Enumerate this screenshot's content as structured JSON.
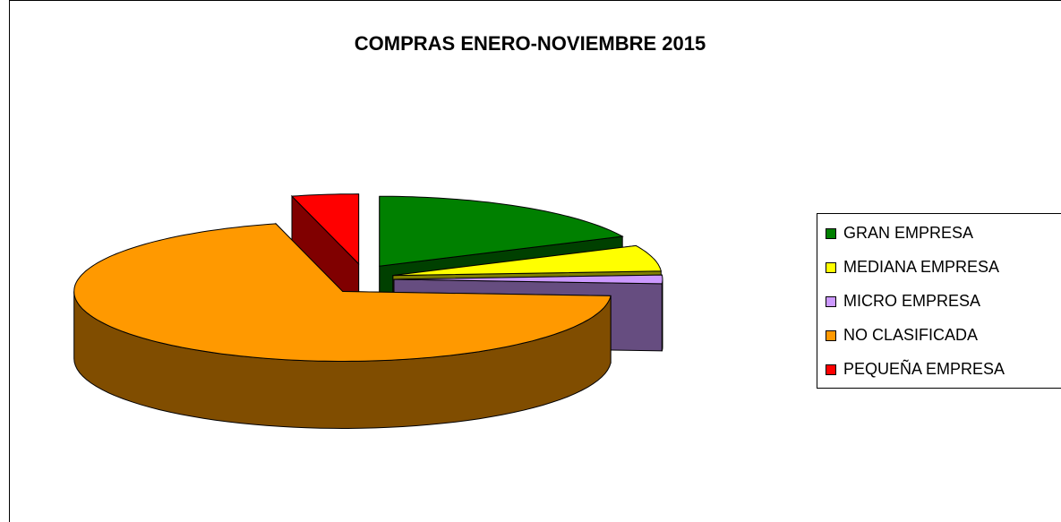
{
  "chart_data": {
    "type": "pie",
    "title": "COMPRAS ENERO-NOVIEMBRE 2015",
    "categories": [
      "GRAN EMPRESA",
      "MEDIANA EMPRESA",
      "MICRO EMPRESA",
      "NO CLASIFICADA",
      "PEQUEÑA EMPRESA"
    ],
    "values": [
      18,
      6,
      2,
      70,
      4
    ],
    "colors": [
      "#008000",
      "#ffff00",
      "#cc99ff",
      "#ff9900",
      "#ff0000"
    ],
    "legend": "right"
  }
}
